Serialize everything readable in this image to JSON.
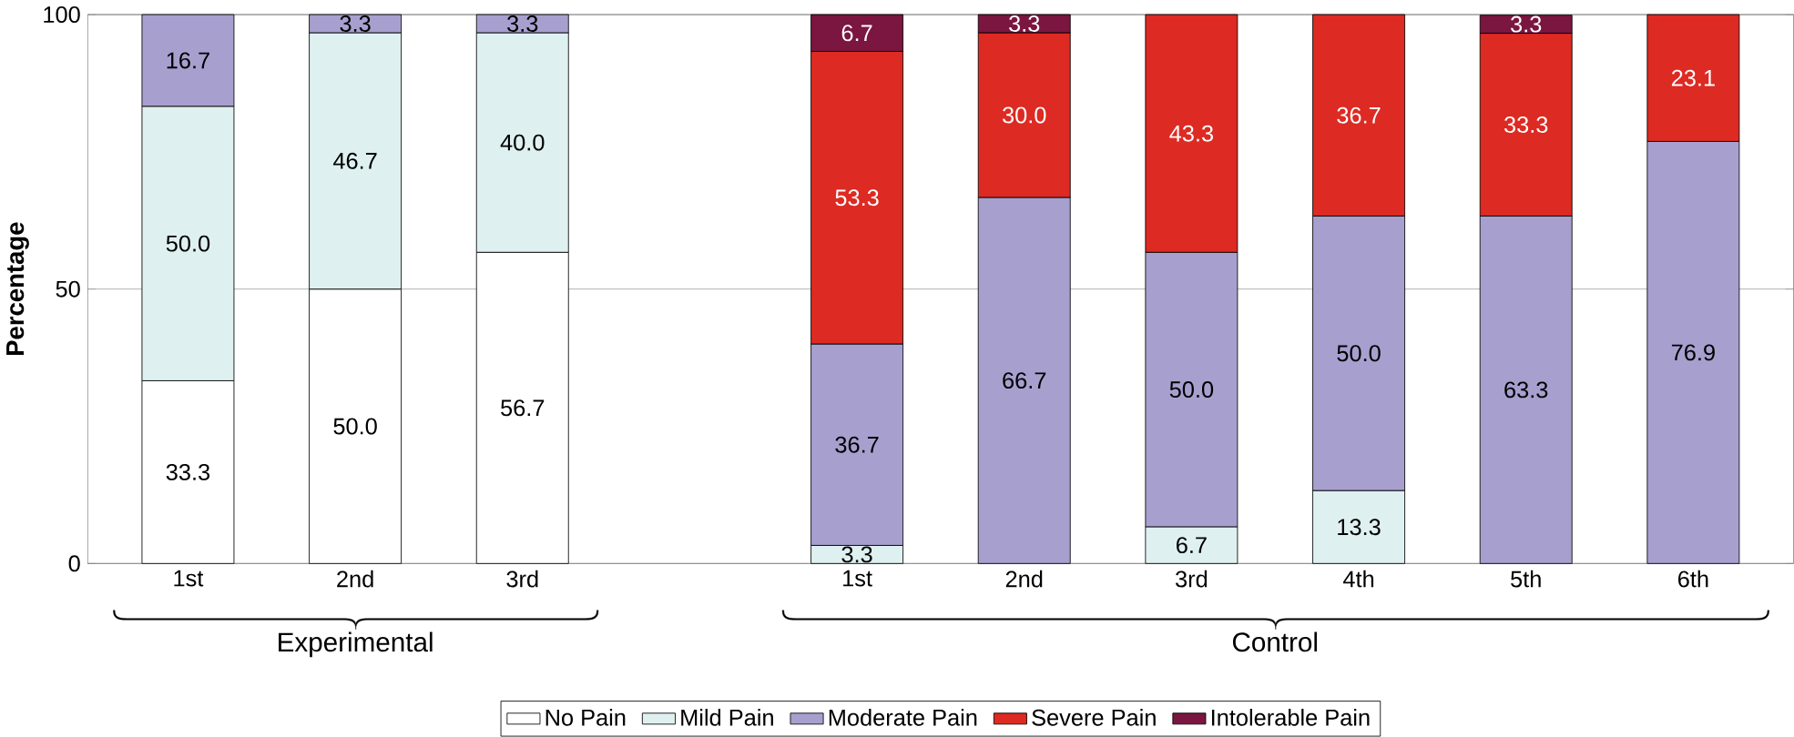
{
  "chart_data": {
    "type": "bar",
    "stacked": true,
    "ylabel": "Percentage",
    "categories": [
      "1st",
      "2nd",
      "3rd",
      null,
      "1st",
      "2nd",
      "3rd",
      "4th",
      "5th",
      "6th"
    ],
    "series": [
      {
        "name": "No Pain",
        "color": "#ffffff",
        "values": [
          33.3,
          50.0,
          56.7,
          null,
          null,
          null,
          null,
          null,
          null,
          null
        ],
        "value_labels": [
          "33.3",
          "50.0",
          "56.7",
          null,
          null,
          null,
          null,
          null,
          null,
          null
        ]
      },
      {
        "name": "Mild Pain",
        "color": "#dff0f0",
        "values": [
          50.0,
          46.7,
          40.0,
          null,
          3.3,
          null,
          6.7,
          13.3,
          null,
          null
        ],
        "value_labels": [
          "50.0",
          "46.7",
          "40.0",
          null,
          "3.3",
          null,
          "6.7",
          "13.3",
          null,
          null
        ]
      },
      {
        "name": "Moderate Pain",
        "color": "#a7a0cf",
        "values": [
          16.7,
          3.3,
          3.3,
          null,
          36.7,
          66.7,
          50.0,
          50.0,
          63.3,
          76.9
        ],
        "value_labels": [
          "16.7",
          "3.3",
          "3.3",
          null,
          "36.7",
          "66.7",
          "50.0",
          "50.0",
          "63.3",
          "76.9"
        ]
      },
      {
        "name": "Severe Pain",
        "color": "#dd2a22",
        "values": [
          null,
          null,
          null,
          null,
          53.3,
          30.0,
          43.3,
          36.7,
          33.3,
          23.1
        ],
        "value_labels": [
          null,
          null,
          null,
          null,
          "53.3",
          "30.0",
          "43.3",
          "36.7",
          "33.3",
          "23.1"
        ]
      },
      {
        "name": "Intolerable Pain",
        "color": "#7a1640",
        "values": [
          null,
          null,
          null,
          null,
          6.7,
          3.3,
          null,
          null,
          3.3,
          null
        ],
        "value_labels": [
          null,
          null,
          null,
          null,
          "6.7",
          "3.3",
          null,
          null,
          "3.3",
          null
        ]
      }
    ],
    "ylim": [
      0,
      100
    ],
    "yticks": [
      0,
      50,
      100
    ],
    "grid": "y",
    "legend": "bottom",
    "annotations": [
      "Experimental",
      "Control"
    ]
  }
}
